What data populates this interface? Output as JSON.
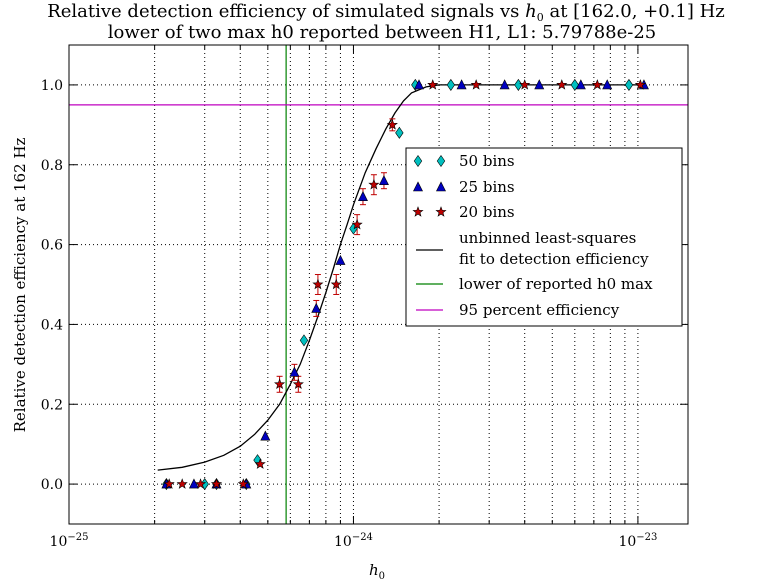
{
  "chart_data": {
    "type": "scatter",
    "title_line1_prefix": "Relative detection efficiency of simulated signals vs ",
    "title_symbol": "h",
    "title_symbol_sub": "0",
    "title_line1_suffix": " at [162.0, +0.1]  Hz",
    "title_line2": "lower of two max h0 reported between H1, L1: 5.79788e-25",
    "xlabel": "h",
    "xlabel_sub": "0",
    "ylabel": "Relative detection efficiency at 162 Hz",
    "xscale": "log",
    "xlim": [
      1e-25,
      1.5e-23
    ],
    "ylim": [
      -0.1,
      1.1
    ],
    "grid": true,
    "legend_placement": "center-right",
    "x_ticks": [
      {
        "value": 1e-25,
        "base": "10",
        "exp": "−25"
      },
      {
        "value": 1e-24,
        "base": "10",
        "exp": "−24"
      },
      {
        "value": 1e-23,
        "base": "10",
        "exp": "−23"
      }
    ],
    "y_ticks": [
      {
        "value": 0.0,
        "label": "0.0"
      },
      {
        "value": 0.2,
        "label": "0.2"
      },
      {
        "value": 0.4,
        "label": "0.4"
      },
      {
        "value": 0.6,
        "label": "0.6"
      },
      {
        "value": 0.8,
        "label": "0.8"
      },
      {
        "value": 1.0,
        "label": "1.0"
      }
    ],
    "series": [
      {
        "name": "50 bins",
        "marker": "diamond",
        "color": "#00bfbf",
        "points": [
          {
            "x": 2.2e-25,
            "y": 0.0
          },
          {
            "x": 3e-25,
            "y": 0.0
          },
          {
            "x": 3.3e-25,
            "y": 0.0
          },
          {
            "x": 4.2e-25,
            "y": 0.0
          },
          {
            "x": 4.6e-25,
            "y": 0.06
          },
          {
            "x": 6.7e-25,
            "y": 0.36
          },
          {
            "x": 1e-24,
            "y": 0.64
          },
          {
            "x": 1.45e-24,
            "y": 0.88
          },
          {
            "x": 1.65e-24,
            "y": 1.0
          },
          {
            "x": 2.2e-24,
            "y": 1.0
          },
          {
            "x": 3.8e-24,
            "y": 1.0
          },
          {
            "x": 6e-24,
            "y": 1.0
          },
          {
            "x": 9.3e-24,
            "y": 1.0
          }
        ]
      },
      {
        "name": "25 bins",
        "marker": "triangle",
        "color": "#0000bf",
        "points": [
          {
            "x": 2.2e-25,
            "y": 0.0
          },
          {
            "x": 2.75e-25,
            "y": 0.0
          },
          {
            "x": 3.3e-25,
            "y": 0.0
          },
          {
            "x": 4.2e-25,
            "y": 0.0
          },
          {
            "x": 4.9e-25,
            "y": 0.12
          },
          {
            "x": 6.2e-25,
            "y": 0.28
          },
          {
            "x": 7.4e-25,
            "y": 0.44
          },
          {
            "x": 9e-25,
            "y": 0.56
          },
          {
            "x": 1.08e-24,
            "y": 0.72
          },
          {
            "x": 1.28e-24,
            "y": 0.76
          },
          {
            "x": 1.7e-24,
            "y": 1.0
          },
          {
            "x": 2.4e-24,
            "y": 1.0
          },
          {
            "x": 3.4e-24,
            "y": 1.0
          },
          {
            "x": 4.5e-24,
            "y": 1.0
          },
          {
            "x": 6.3e-24,
            "y": 1.0
          },
          {
            "x": 7.8e-24,
            "y": 1.0
          },
          {
            "x": 1.05e-23,
            "y": 1.0
          }
        ]
      },
      {
        "name": "20 bins",
        "marker": "star",
        "color": "#bf0000",
        "points": [
          {
            "x": 2.25e-25,
            "y": 0.0
          },
          {
            "x": 2.5e-25,
            "y": 0.0
          },
          {
            "x": 2.9e-25,
            "y": 0.0
          },
          {
            "x": 3.3e-25,
            "y": 0.0
          },
          {
            "x": 4.1e-25,
            "y": 0.0
          },
          {
            "x": 4.7e-25,
            "y": 0.05
          },
          {
            "x": 5.5e-25,
            "y": 0.25
          },
          {
            "x": 6.4e-25,
            "y": 0.25
          },
          {
            "x": 7.5e-25,
            "y": 0.5
          },
          {
            "x": 8.7e-25,
            "y": 0.5
          },
          {
            "x": 1.03e-24,
            "y": 0.65
          },
          {
            "x": 1.18e-24,
            "y": 0.75
          },
          {
            "x": 1.37e-24,
            "y": 0.9
          },
          {
            "x": 1.9e-24,
            "y": 1.0
          },
          {
            "x": 2.7e-24,
            "y": 1.0
          },
          {
            "x": 4e-24,
            "y": 1.0
          },
          {
            "x": 5.4e-24,
            "y": 1.0
          },
          {
            "x": 7.2e-24,
            "y": 1.0
          },
          {
            "x": 1.02e-23,
            "y": 1.0
          }
        ]
      }
    ],
    "error_bars": [
      {
        "x": 5.5e-25,
        "low": 0.23,
        "high": 0.27
      },
      {
        "x": 6.4e-25,
        "low": 0.23,
        "high": 0.27
      },
      {
        "x": 7.5e-25,
        "low": 0.475,
        "high": 0.525
      },
      {
        "x": 8.7e-25,
        "low": 0.475,
        "high": 0.525
      },
      {
        "x": 1.03e-24,
        "low": 0.625,
        "high": 0.675
      },
      {
        "x": 1.18e-24,
        "low": 0.725,
        "high": 0.775
      },
      {
        "x": 1.37e-24,
        "low": 0.885,
        "high": 0.915
      },
      {
        "x": 6.2e-25,
        "low": 0.26,
        "high": 0.3
      },
      {
        "x": 7.4e-25,
        "low": 0.42,
        "high": 0.46
      },
      {
        "x": 1.08e-24,
        "low": 0.7,
        "high": 0.74
      },
      {
        "x": 1.28e-24,
        "low": 0.74,
        "high": 0.78
      }
    ],
    "fit_curve": {
      "name": "unbinned least-squares\n fit to detection efficiency",
      "color": "#000000",
      "x_start": 2.05e-25,
      "x_end": 1.05e-23,
      "points": [
        {
          "x": 2.05e-25,
          "y": 0.035
        },
        {
          "x": 2.5e-25,
          "y": 0.042
        },
        {
          "x": 3e-25,
          "y": 0.055
        },
        {
          "x": 3.5e-25,
          "y": 0.072
        },
        {
          "x": 4e-25,
          "y": 0.095
        },
        {
          "x": 4.5e-25,
          "y": 0.125
        },
        {
          "x": 5e-25,
          "y": 0.16
        },
        {
          "x": 5.5e-25,
          "y": 0.2
        },
        {
          "x": 6e-25,
          "y": 0.25
        },
        {
          "x": 6.5e-25,
          "y": 0.3
        },
        {
          "x": 7e-25,
          "y": 0.36
        },
        {
          "x": 7.5e-25,
          "y": 0.42
        },
        {
          "x": 8e-25,
          "y": 0.48
        },
        {
          "x": 8.5e-25,
          "y": 0.54
        },
        {
          "x": 9e-25,
          "y": 0.6
        },
        {
          "x": 9.5e-25,
          "y": 0.65
        },
        {
          "x": 1e-24,
          "y": 0.7
        },
        {
          "x": 1.1e-24,
          "y": 0.78
        },
        {
          "x": 1.2e-24,
          "y": 0.84
        },
        {
          "x": 1.3e-24,
          "y": 0.89
        },
        {
          "x": 1.4e-24,
          "y": 0.93
        },
        {
          "x": 1.5e-24,
          "y": 0.96
        },
        {
          "x": 1.6e-24,
          "y": 0.98
        },
        {
          "x": 1.8e-24,
          "y": 0.995
        },
        {
          "x": 2e-24,
          "y": 1.0
        },
        {
          "x": 3e-24,
          "y": 1.0
        },
        {
          "x": 1.05e-23,
          "y": 1.0
        }
      ]
    },
    "vertical_line": {
      "name": "lower of reported h0 max",
      "x": 5.79788e-25,
      "color": "#008000"
    },
    "horizontal_line": {
      "name": "95 percent efficiency",
      "y": 0.95,
      "color": "#bf00bf"
    }
  }
}
